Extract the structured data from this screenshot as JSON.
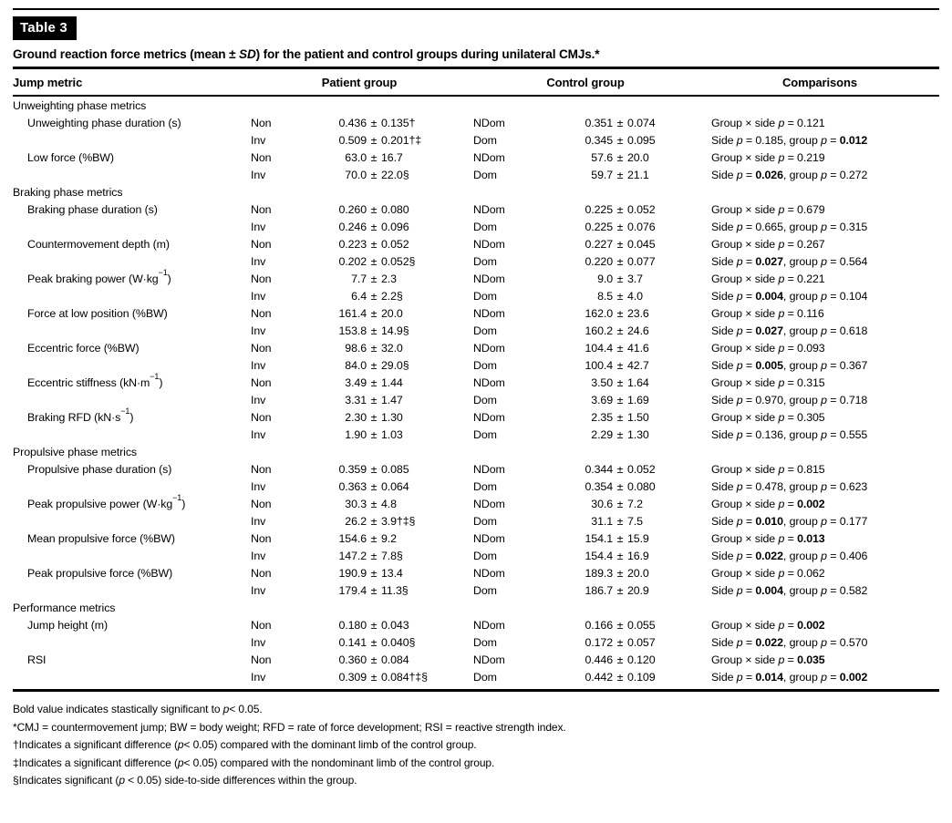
{
  "colors": {
    "text": "#000000",
    "background": "#ffffff",
    "chip_bg": "#000000",
    "chip_text": "#ffffff"
  },
  "table_label": "Table 3",
  "title": {
    "pre": "Ground reaction force metrics (mean ± ",
    "sd": "SD",
    "post": ") for the patient and control groups during unilateral CMJs.*"
  },
  "columns": {
    "metric": "Jump metric",
    "patient": "Patient group",
    "control": "Control group",
    "comparisons": "Comparisons"
  },
  "table": {
    "sections": [
      {
        "name": "Unweighting phase metrics",
        "metrics": [
          {
            "name": "Unweighting phase duration (s)",
            "rows": [
              {
                "p_side": "Non",
                "p_val": "0.436 ± 0.135†",
                "c_side": "NDom",
                "c_val": "0.351 ± 0.074",
                "comp": "Group × side p = 0.121",
                "bold": []
              },
              {
                "p_side": "Inv",
                "p_val": "0.509 ± 0.201†‡",
                "c_side": "Dom",
                "c_val": "0.345 ± 0.095",
                "comp": "Side p = 0.185, group p = 0.012",
                "bold": [
                  "0.012"
                ]
              }
            ]
          },
          {
            "name": "Low force (%BW)",
            "rows": [
              {
                "p_side": "Non",
                "p_val": "63.0 ± 16.7",
                "c_side": "NDom",
                "c_val": "57.6 ± 20.0",
                "comp": "Group × side p = 0.219",
                "bold": []
              },
              {
                "p_side": "Inv",
                "p_val": "70.0 ± 22.0§",
                "c_side": "Dom",
                "c_val": "59.7 ± 21.1",
                "comp": "Side p = 0.026, group p = 0.272",
                "bold": [
                  "0.026"
                ]
              }
            ]
          }
        ]
      },
      {
        "name": "Braking phase metrics",
        "metrics": [
          {
            "name": "Braking phase duration (s)",
            "rows": [
              {
                "p_side": "Non",
                "p_val": "0.260 ± 0.080",
                "c_side": "NDom",
                "c_val": "0.225 ± 0.052",
                "comp": "Group × side p = 0.679",
                "bold": []
              },
              {
                "p_side": "Inv",
                "p_val": "0.246 ± 0.096",
                "c_side": "Dom",
                "c_val": "0.225 ± 0.076",
                "comp": "Side p = 0.665, group p = 0.315",
                "bold": []
              }
            ]
          },
          {
            "name": "Countermovement depth (m)",
            "rows": [
              {
                "p_side": "Non",
                "p_val": "0.223 ± 0.052",
                "c_side": "NDom",
                "c_val": "0.227 ± 0.045",
                "comp": "Group × side p = 0.267",
                "bold": []
              },
              {
                "p_side": "Inv",
                "p_val": "0.202 ± 0.052§",
                "c_side": "Dom",
                "c_val": "0.220 ± 0.077",
                "comp": "Side p = 0.027, group p = 0.564",
                "bold": [
                  "0.027"
                ]
              }
            ]
          },
          {
            "name": "Peak braking power (W·kg⁻¹)",
            "rows": [
              {
                "p_side": "Non",
                "p_val": "7.7 ± 2.3",
                "c_side": "NDom",
                "c_val": "9.0 ± 3.7",
                "comp": "Group × side p = 0.221",
                "bold": []
              },
              {
                "p_side": "Inv",
                "p_val": "6.4 ± 2.2§",
                "c_side": "Dom",
                "c_val": "8.5 ± 4.0",
                "comp": "Side p = 0.004, group p = 0.104",
                "bold": [
                  "0.004"
                ]
              }
            ]
          },
          {
            "name": "Force at low position (%BW)",
            "rows": [
              {
                "p_side": "Non",
                "p_val": "161.4 ± 20.0",
                "c_side": "NDom",
                "c_val": "162.0 ± 23.6",
                "comp": "Group × side p = 0.116",
                "bold": []
              },
              {
                "p_side": "Inv",
                "p_val": "153.8 ± 14.9§",
                "c_side": "Dom",
                "c_val": "160.2 ± 24.6",
                "comp": "Side p = 0.027, group p = 0.618",
                "bold": [
                  "0.027"
                ]
              }
            ]
          },
          {
            "name": "Eccentric force (%BW)",
            "rows": [
              {
                "p_side": "Non",
                "p_val": "98.6 ± 32.0",
                "c_side": "NDom",
                "c_val": "104.4 ± 41.6",
                "comp": "Group × side p = 0.093",
                "bold": []
              },
              {
                "p_side": "Inv",
                "p_val": "84.0 ± 29.0§",
                "c_side": "Dom",
                "c_val": "100.4 ± 42.7",
                "comp": "Side p = 0.005, group p = 0.367",
                "bold": [
                  "0.005"
                ]
              }
            ]
          },
          {
            "name": "Eccentric stiffness (kN·m⁻¹)",
            "rows": [
              {
                "p_side": "Non",
                "p_val": "3.49 ± 1.44",
                "c_side": "NDom",
                "c_val": "3.50 ± 1.64",
                "comp": "Group × side p = 0.315",
                "bold": []
              },
              {
                "p_side": "Inv",
                "p_val": "3.31 ± 1.47",
                "c_side": "Dom",
                "c_val": "3.69 ± 1.69",
                "comp": "Side p = 0.970, group p = 0.718",
                "bold": []
              }
            ]
          },
          {
            "name": "Braking RFD (kN·s⁻¹)",
            "rows": [
              {
                "p_side": "Non",
                "p_val": "2.30 ± 1.30",
                "c_side": "NDom",
                "c_val": "2.35 ± 1.50",
                "comp": "Group × side p = 0.305",
                "bold": []
              },
              {
                "p_side": "Inv",
                "p_val": "1.90 ± 1.03",
                "c_side": "Dom",
                "c_val": "2.29 ± 1.30",
                "comp": "Side p = 0.136, group p = 0.555",
                "bold": []
              }
            ]
          }
        ]
      },
      {
        "name": "Propulsive phase metrics",
        "metrics": [
          {
            "name": "Propulsive phase duration (s)",
            "rows": [
              {
                "p_side": "Non",
                "p_val": "0.359 ± 0.085",
                "c_side": "NDom",
                "c_val": "0.344 ± 0.052",
                "comp": "Group × side p = 0.815",
                "bold": []
              },
              {
                "p_side": "Inv",
                "p_val": "0.363 ± 0.064",
                "c_side": "Dom",
                "c_val": "0.354 ± 0.080",
                "comp": "Side p = 0.478, group p = 0.623",
                "bold": []
              }
            ]
          },
          {
            "name": "Peak propulsive power (W·kg⁻¹)",
            "rows": [
              {
                "p_side": "Non",
                "p_val": "30.3 ± 4.8",
                "c_side": "NDom",
                "c_val": "30.6 ± 7.2",
                "comp": "Group × side p = 0.002",
                "bold": [
                  "0.002"
                ]
              },
              {
                "p_side": "Inv",
                "p_val": "26.2 ± 3.9†‡§",
                "c_side": "Dom",
                "c_val": "31.1 ± 7.5",
                "comp": "Side p = 0.010, group p = 0.177",
                "bold": [
                  "0.010"
                ]
              }
            ]
          },
          {
            "name": "Mean propulsive force (%BW)",
            "rows": [
              {
                "p_side": "Non",
                "p_val": "154.6 ± 9.2",
                "c_side": "NDom",
                "c_val": "154.1 ± 15.9",
                "comp": "Group × side p = 0.013",
                "bold": [
                  "0.013"
                ]
              },
              {
                "p_side": "Inv",
                "p_val": "147.2 ± 7.8§",
                "c_side": "Dom",
                "c_val": "154.4 ± 16.9",
                "comp": "Side p = 0.022, group p = 0.406",
                "bold": [
                  "0.022"
                ]
              }
            ]
          },
          {
            "name": "Peak propulsive force (%BW)",
            "rows": [
              {
                "p_side": "Non",
                "p_val": "190.9 ± 13.4",
                "c_side": "NDom",
                "c_val": "189.3 ± 20.0",
                "comp": "Group × side p = 0.062",
                "bold": []
              },
              {
                "p_side": "Inv",
                "p_val": "179.4 ± 11.3§",
                "c_side": "Dom",
                "c_val": "186.7 ± 20.9",
                "comp": "Side p = 0.004, group p = 0.582",
                "bold": [
                  "0.004"
                ]
              }
            ]
          }
        ]
      },
      {
        "name": "Performance metrics",
        "metrics": [
          {
            "name": "Jump height (m)",
            "rows": [
              {
                "p_side": "Non",
                "p_val": "0.180 ± 0.043",
                "c_side": "NDom",
                "c_val": "0.166 ± 0.055",
                "comp": "Group × side p = 0.002",
                "bold": [
                  "0.002"
                ]
              },
              {
                "p_side": "Inv",
                "p_val": "0.141 ± 0.040§",
                "c_side": "Dom",
                "c_val": "0.172 ± 0.057",
                "comp": "Side p = 0.022, group p = 0.570",
                "bold": [
                  "0.022"
                ]
              }
            ]
          },
          {
            "name": "RSI",
            "rows": [
              {
                "p_side": "Non",
                "p_val": "0.360 ± 0.084",
                "c_side": "NDom",
                "c_val": "0.446 ± 0.120",
                "comp": "Group × side p = 0.035",
                "bold": [
                  "0.035"
                ]
              },
              {
                "p_side": "Inv",
                "p_val": "0.309 ± 0.084†‡§",
                "c_side": "Dom",
                "c_val": "0.442 ± 0.109",
                "comp": "Side p = 0.014, group p = 0.002",
                "bold": [
                  "0.014",
                  "0.002"
                ]
              }
            ]
          }
        ]
      }
    ]
  },
  "footnotes": [
    "Bold value indicates stastically significant to p< 0.05.",
    "*CMJ = countermovement jump; BW = body weight; RFD = rate of force development; RSI = reactive strength index.",
    "†Indicates a significant difference (p< 0.05) compared with the dominant limb of the control group.",
    "‡Indicates a significant difference (p< 0.05) compared with the nondominant limb of the control group.",
    "§Indicates significant (p < 0.05) side-to-side differences within the group."
  ]
}
